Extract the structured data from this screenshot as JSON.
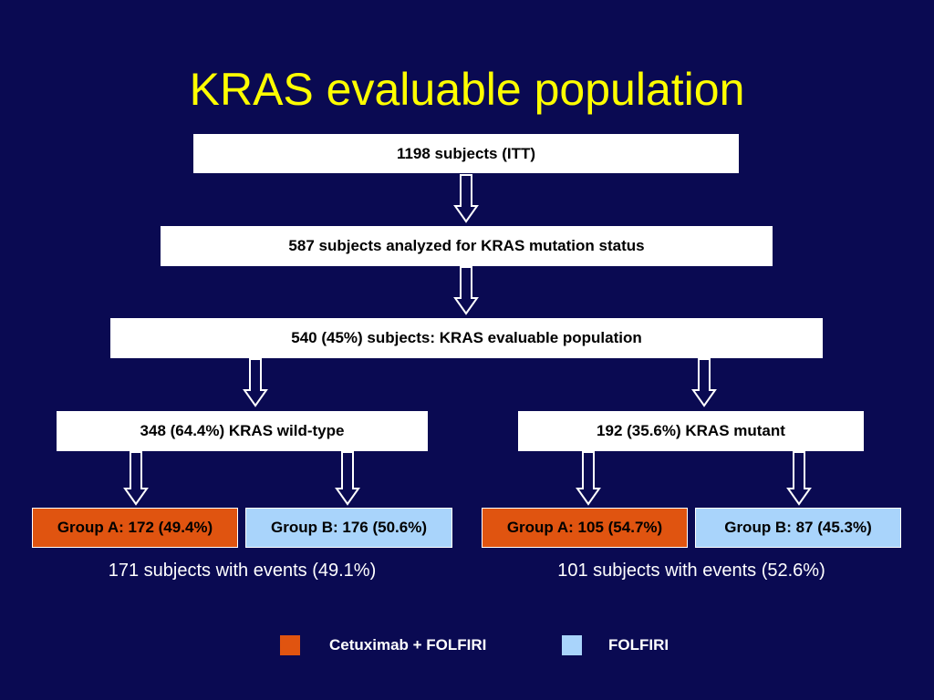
{
  "title": "KRAS evaluable population",
  "flow": {
    "itt": "1198 subjects (ITT)",
    "analyzed": "587 subjects analyzed for KRAS mutation status",
    "evaluable": "540 (45%) subjects: KRAS evaluable population",
    "wild_type": "348 (64.4%) KRAS wild-type",
    "mutant": "192 (35.6%) KRAS mutant"
  },
  "groups": {
    "wt_a": "Group A: 172 (49.4%)",
    "wt_b": "Group B: 176 (50.6%)",
    "mut_a": "Group A: 105 (54.7%)",
    "mut_b": "Group B: 87 (45.3%)"
  },
  "events": {
    "wild_type": "171 subjects with events (49.1%)",
    "mutant": "101 subjects with events (52.6%)"
  },
  "legend": {
    "cetuximab": {
      "label": "Cetuximab + FOLFIRI",
      "color": "#e05410"
    },
    "folfiri": {
      "label": "FOLFIRI",
      "color": "#a9d4fb"
    }
  },
  "colors": {
    "background": "#0a0a52",
    "title": "#ffff00",
    "group_a": "#e05410",
    "group_b": "#a9d4fb"
  }
}
